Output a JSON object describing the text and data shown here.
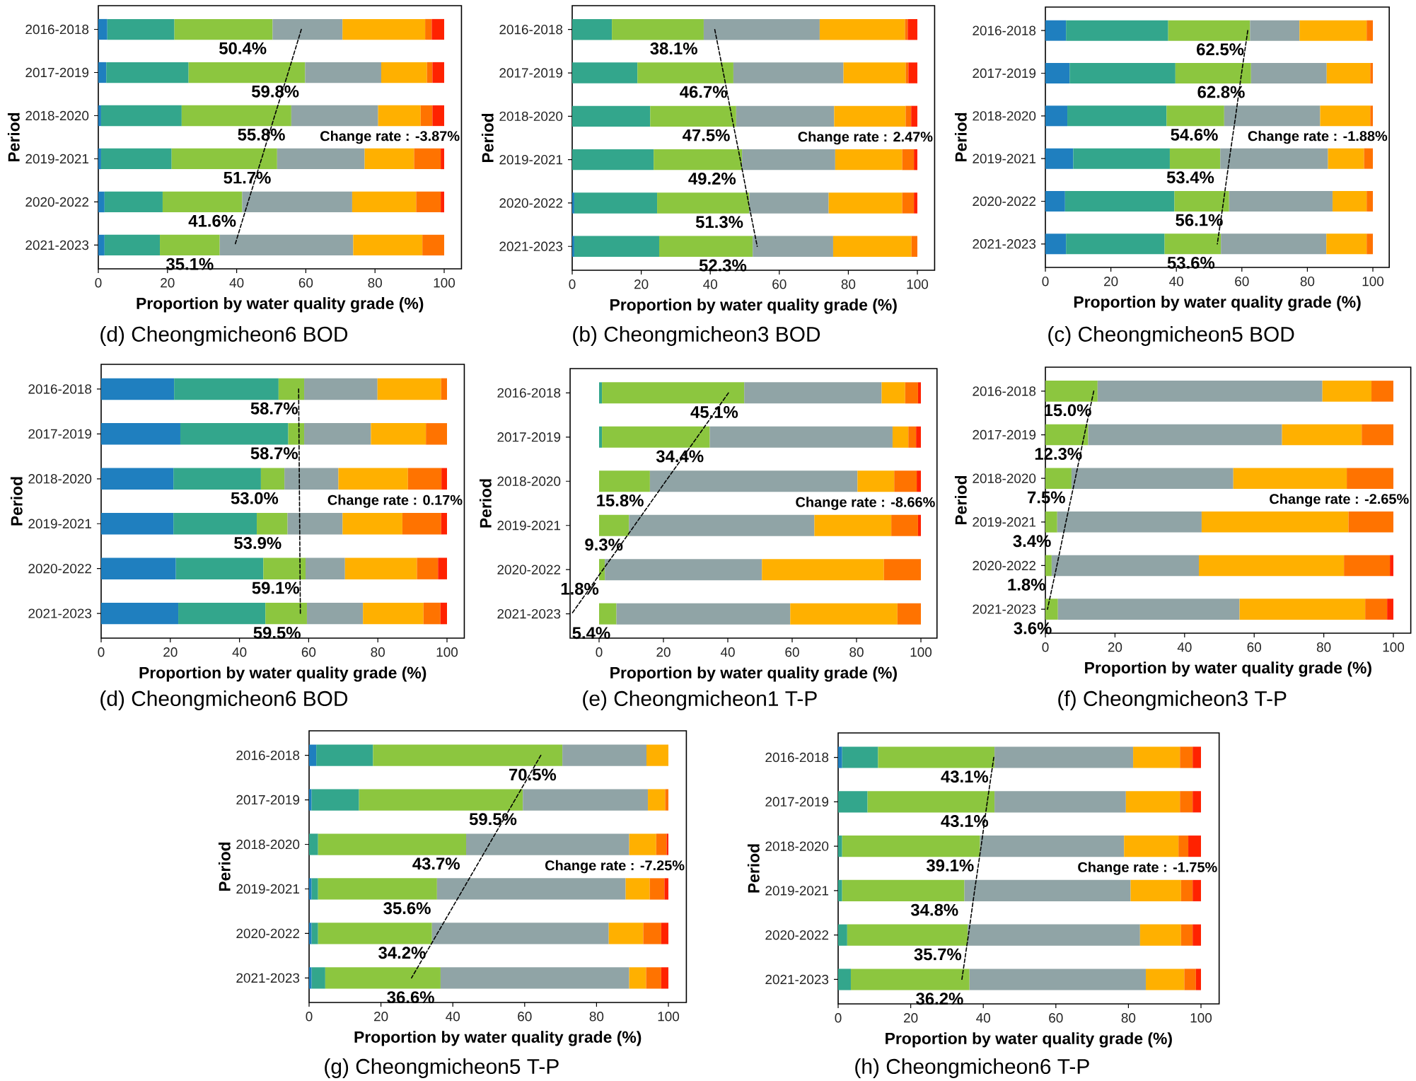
{
  "chart_data": [
    {
      "type": "bar",
      "orientation": "horizontal",
      "stacked": true,
      "title": "(d) Cheongmicheon6 BOD",
      "xlabel": "Proportion by water quality grade (%)",
      "ylabel": "Period",
      "categories": [
        "2016-2018",
        "2017-2019",
        "2018-2020",
        "2019-2021",
        "2020-2022",
        "2021-2023"
      ],
      "xlim": [
        0,
        105
      ],
      "xticks": [
        0,
        20,
        40,
        60,
        80,
        100
      ],
      "series": [
        {
          "color": "#1f7fbf",
          "values": [
            2.6,
            2.3,
            0.8,
            0.8,
            1.8,
            1.8
          ]
        },
        {
          "color": "#33a68c",
          "values": [
            19.4,
            23.8,
            23.3,
            20.4,
            16.8,
            16.0
          ]
        },
        {
          "color": "#8cc63f",
          "values": [
            28.4,
            33.7,
            31.7,
            30.5,
            23.0,
            17.3
          ]
        },
        {
          "color": "#90a4a6",
          "values": [
            20.2,
            22.0,
            25.1,
            25.3,
            31.8,
            38.6
          ]
        },
        {
          "color": "#ffb000",
          "values": [
            23.9,
            13.2,
            12.3,
            14.3,
            18.5,
            20.0
          ]
        },
        {
          "color": "#ff7300",
          "values": [
            1.9,
            1.6,
            3.4,
            7.7,
            7.1,
            6.3
          ]
        },
        {
          "color": "#ff2200",
          "values": [
            3.6,
            3.4,
            3.4,
            1.0,
            1.0,
            0
          ]
        },
        {
          "type": "line",
          "color": "#000000",
          "line_style": "dashed",
          "values": [
            58.7,
            54.9,
            51.0,
            47.2,
            43.3,
            39.5
          ]
        }
      ],
      "annotations": [
        {
          "text": "50.4%",
          "x": 50.4,
          "y": "2016-2018"
        },
        {
          "text": "59.8%",
          "x": 59.8,
          "y": "2017-2019"
        },
        {
          "text": "55.8%",
          "x": 55.8,
          "y": "2018-2020"
        },
        {
          "text": "51.7%",
          "x": 51.7,
          "y": "2019-2021"
        },
        {
          "text": "41.6%",
          "x": 41.6,
          "y": "2020-2022"
        },
        {
          "text": "35.1%",
          "x": 35.1,
          "y": "2021-2023"
        },
        "Change rate : -3.87%"
      ]
    },
    {
      "type": "bar",
      "orientation": "horizontal",
      "stacked": true,
      "title": "(b) Cheongmicheon3 BOD",
      "xlabel": "Proportion by water quality grade (%)",
      "ylabel": "Period",
      "categories": [
        "2016-2018",
        "2017-2019",
        "2018-2020",
        "2019-2021",
        "2020-2022",
        "2021-2023"
      ],
      "xlim": [
        0,
        105
      ],
      "xticks": [
        0,
        20,
        40,
        60,
        80,
        100
      ],
      "series": [
        {
          "color": "#1f7fbf",
          "values": [
            0,
            0,
            0,
            0,
            0.6,
            0.6
          ]
        },
        {
          "color": "#33a68c",
          "values": [
            11.5,
            18.9,
            22.6,
            23.6,
            24.0,
            24.6
          ]
        },
        {
          "color": "#8cc63f",
          "values": [
            26.6,
            27.8,
            24.9,
            25.6,
            26.7,
            27.1
          ]
        },
        {
          "color": "#90a4a6",
          "values": [
            33.6,
            31.9,
            28.4,
            27.0,
            23.0,
            23.3
          ]
        },
        {
          "color": "#ffb000",
          "values": [
            24.7,
            18.0,
            20.7,
            19.4,
            21.3,
            22.7
          ]
        },
        {
          "color": "#ff7300",
          "values": [
            0.8,
            0.8,
            1.6,
            3.4,
            3.4,
            1.7
          ]
        },
        {
          "color": "#ff2200",
          "values": [
            2.8,
            2.6,
            1.8,
            1.0,
            1.0,
            0
          ]
        },
        {
          "type": "line",
          "color": "#000000",
          "line_style": "dashed",
          "values": [
            41.3,
            43.8,
            46.2,
            48.7,
            51.1,
            53.6
          ]
        }
      ],
      "annotations": [
        {
          "text": "38.1%",
          "x": 38.1,
          "y": "2016-2018"
        },
        {
          "text": "46.7%",
          "x": 46.7,
          "y": "2017-2019"
        },
        {
          "text": "47.5%",
          "x": 47.5,
          "y": "2018-2020"
        },
        {
          "text": "49.2%",
          "x": 49.2,
          "y": "2019-2021"
        },
        {
          "text": "51.3%",
          "x": 51.3,
          "y": "2020-2022"
        },
        {
          "text": "52.3%",
          "x": 52.3,
          "y": "2021-2023"
        },
        "Change rate : 2.47%"
      ]
    },
    {
      "type": "bar",
      "orientation": "horizontal",
      "stacked": true,
      "title": "(c) Cheongmicheon5 BOD",
      "xlabel": "Proportion by water quality grade (%)",
      "ylabel": "Period",
      "categories": [
        "2016-2018",
        "2017-2019",
        "2018-2020",
        "2019-2021",
        "2020-2022",
        "2021-2023"
      ],
      "xlim": [
        0,
        105
      ],
      "xticks": [
        0,
        20,
        40,
        60,
        80,
        100
      ],
      "series": [
        {
          "color": "#1f7fbf",
          "values": [
            6.3,
            7.4,
            6.7,
            8.5,
            6.0,
            6.3
          ]
        },
        {
          "color": "#33a68c",
          "values": [
            31.2,
            32.3,
            30.3,
            29.5,
            33.4,
            30.1
          ]
        },
        {
          "color": "#8cc63f",
          "values": [
            25.0,
            23.1,
            17.6,
            15.4,
            16.7,
            17.2
          ]
        },
        {
          "color": "#90a4a6",
          "values": [
            15.1,
            23.1,
            29.3,
            32.9,
            31.6,
            32.2
          ]
        },
        {
          "color": "#ffb000",
          "values": [
            20.5,
            13.3,
            15.3,
            11.0,
            10.4,
            12.3
          ]
        },
        {
          "color": "#ff7300",
          "values": [
            1.9,
            0.8,
            0.8,
            2.7,
            1.9,
            1.9
          ]
        },
        {
          "type": "line",
          "color": "#000000",
          "line_style": "dashed",
          "values": [
            61.8,
            59.9,
            58.1,
            56.2,
            54.4,
            52.5
          ]
        }
      ],
      "annotations": [
        {
          "text": "62.5%",
          "x": 62.5,
          "y": "2016-2018"
        },
        {
          "text": "62.8%",
          "x": 62.8,
          "y": "2017-2019"
        },
        {
          "text": "54.6%",
          "x": 54.6,
          "y": "2018-2020"
        },
        {
          "text": "53.4%",
          "x": 53.4,
          "y": "2019-2021"
        },
        {
          "text": "56.1%",
          "x": 56.1,
          "y": "2020-2022"
        },
        {
          "text": "53.6%",
          "x": 53.6,
          "y": "2021-2023"
        },
        "Change rate : -1.88%"
      ]
    },
    {
      "type": "bar",
      "orientation": "horizontal",
      "stacked": true,
      "title": "(d) Cheongmicheon6 BOD",
      "xlabel": "Proportion by water quality grade (%)",
      "ylabel": "Period",
      "categories": [
        "2016-2018",
        "2017-2019",
        "2018-2020",
        "2019-2021",
        "2020-2022",
        "2021-2023"
      ],
      "xlim": [
        0,
        105
      ],
      "xticks": [
        0,
        20,
        40,
        60,
        80,
        100
      ],
      "series": [
        {
          "color": "#1f7fbf",
          "values": [
            21.1,
            22.9,
            20.9,
            20.9,
            21.6,
            22.3
          ]
        },
        {
          "color": "#33a68c",
          "values": [
            30.2,
            31.2,
            25.3,
            24.1,
            25.3,
            25.2
          ]
        },
        {
          "color": "#8cc63f",
          "values": [
            7.4,
            4.6,
            6.8,
            8.9,
            12.2,
            12.0
          ]
        },
        {
          "color": "#90a4a6",
          "values": [
            21.2,
            19.3,
            15.6,
            15.9,
            11.4,
            16.2
          ]
        },
        {
          "color": "#ffb000",
          "values": [
            18.4,
            15.9,
            20.1,
            17.3,
            20.8,
            17.5
          ]
        },
        {
          "color": "#ff7300",
          "values": [
            1.7,
            6.1,
            9.7,
            11.2,
            6.1,
            4.9
          ]
        },
        {
          "color": "#ff2200",
          "values": [
            0,
            0,
            1.6,
            1.7,
            2.6,
            1.9
          ]
        },
        {
          "type": "line",
          "color": "#000000",
          "line_style": "dashed",
          "values": [
            57.1,
            57.2,
            57.3,
            57.4,
            57.5,
            57.6
          ]
        }
      ],
      "annotations": [
        {
          "text": "58.7%",
          "x": 58.7,
          "y": "2016-2018"
        },
        {
          "text": "58.7%",
          "x": 58.7,
          "y": "2017-2019"
        },
        {
          "text": "53.0%",
          "x": 53.0,
          "y": "2018-2020"
        },
        {
          "text": "53.9%",
          "x": 53.9,
          "y": "2019-2021"
        },
        {
          "text": "59.1%",
          "x": 59.1,
          "y": "2020-2022"
        },
        {
          "text": "59.5%",
          "x": 59.5,
          "y": "2021-2023"
        },
        "Change rate : 0.17%"
      ]
    },
    {
      "type": "bar",
      "orientation": "horizontal",
      "stacked": true,
      "title": "(e) Cheongmicheon1 T-P",
      "xlabel": "Proportion by water quality grade (%)",
      "ylabel": "Period",
      "categories": [
        "2016-2018",
        "2017-2019",
        "2018-2020",
        "2019-2021",
        "2020-2022",
        "2021-2023"
      ],
      "xlim": [
        -9,
        105
      ],
      "xticks": [
        0,
        20,
        40,
        60,
        80,
        100
      ],
      "series": [
        {
          "color": "#33a68c",
          "values": [
            0.9,
            0.9,
            0,
            0,
            0,
            0
          ]
        },
        {
          "color": "#8cc63f",
          "values": [
            44.2,
            33.5,
            15.8,
            9.3,
            1.8,
            5.4
          ]
        },
        {
          "color": "#90a4a6",
          "values": [
            42.7,
            56.8,
            64.5,
            57.6,
            48.8,
            54.0
          ]
        },
        {
          "color": "#ffb000",
          "values": [
            7.3,
            4.9,
            11.4,
            23.9,
            37.9,
            33.3
          ]
        },
        {
          "color": "#ff7300",
          "values": [
            4.0,
            2.4,
            7.0,
            8.3,
            11.5,
            7.3
          ]
        },
        {
          "color": "#ff2200",
          "values": [
            0.9,
            1.5,
            1.3,
            0.9,
            0,
            0
          ]
        },
        {
          "type": "line",
          "color": "#000000",
          "line_style": "dashed",
          "values": [
            40.2,
            30.5,
            20.7,
            11.0,
            1.2,
            -8.5
          ]
        }
      ],
      "annotations": [
        {
          "text": "45.1%",
          "x": 45.1,
          "y": "2016-2018"
        },
        {
          "text": "34.4%",
          "x": 34.4,
          "y": "2017-2019"
        },
        {
          "text": "15.8%",
          "x": 15.8,
          "y": "2018-2020"
        },
        {
          "text": "9.3%",
          "x": 9.3,
          "y": "2019-2021"
        },
        {
          "text": "1.8%",
          "x": 1.8,
          "y": "2020-2022"
        },
        {
          "text": "5.4%",
          "x": 5.4,
          "y": "2021-2023"
        },
        "Change rate : -8.66%"
      ]
    },
    {
      "type": "bar",
      "orientation": "horizontal",
      "stacked": true,
      "title": "(f) Cheongmicheon3 T-P",
      "xlabel": "Proportion by water quality grade (%)",
      "ylabel": "Period",
      "categories": [
        "2016-2018",
        "2017-2019",
        "2018-2020",
        "2019-2021",
        "2020-2022",
        "2021-2023"
      ],
      "xlim": [
        0,
        105
      ],
      "xticks": [
        0,
        20,
        40,
        60,
        80,
        100
      ],
      "series": [
        {
          "color": "#8cc63f",
          "values": [
            15.0,
            12.3,
            7.5,
            3.4,
            1.8,
            3.6
          ]
        },
        {
          "color": "#90a4a6",
          "values": [
            64.6,
            55.7,
            46.5,
            41.5,
            42.3,
            52.2
          ]
        },
        {
          "color": "#ffb000",
          "values": [
            14.1,
            22.9,
            32.6,
            42.2,
            41.7,
            36.1
          ]
        },
        {
          "color": "#ff7300",
          "values": [
            6.3,
            9.1,
            13.4,
            12.9,
            13.2,
            6.3
          ]
        },
        {
          "color": "#ff2200",
          "values": [
            0,
            0,
            0,
            0,
            1.0,
            1.8
          ]
        },
        {
          "type": "line",
          "color": "#000000",
          "line_style": "dashed",
          "values": [
            13.9,
            11.2,
            8.6,
            5.9,
            3.3,
            0.6
          ]
        }
      ],
      "annotations": [
        {
          "text": "15.0%",
          "x": 15.0,
          "y": "2016-2018"
        },
        {
          "text": "12.3%",
          "x": 12.3,
          "y": "2017-2019"
        },
        {
          "text": "7.5%",
          "x": 7.5,
          "y": "2018-2020"
        },
        {
          "text": "3.4%",
          "x": 3.4,
          "y": "2019-2021"
        },
        {
          "text": "1.8%",
          "x": 1.8,
          "y": "2020-2022"
        },
        {
          "text": "3.6%",
          "x": 3.6,
          "y": "2021-2023"
        },
        "Change rate : -2.65%"
      ]
    },
    {
      "type": "bar",
      "orientation": "horizontal",
      "stacked": true,
      "title": "(g) Cheongmicheon5 T-P",
      "xlabel": "Proportion by water quality grade (%)",
      "ylabel": "Period",
      "categories": [
        "2016-2018",
        "2017-2019",
        "2018-2020",
        "2019-2021",
        "2020-2022",
        "2021-2023"
      ],
      "xlim": [
        0,
        105
      ],
      "xticks": [
        0,
        20,
        40,
        60,
        80,
        100
      ],
      "series": [
        {
          "color": "#1f7fbf",
          "values": [
            2.0,
            0.7,
            0,
            0.7,
            0.7,
            0.7
          ]
        },
        {
          "color": "#33a68c",
          "values": [
            15.8,
            13.2,
            2.5,
            1.8,
            1.8,
            3.8
          ]
        },
        {
          "color": "#8cc63f",
          "values": [
            52.7,
            45.6,
            41.2,
            33.1,
            31.7,
            32.1
          ]
        },
        {
          "color": "#90a4a6",
          "values": [
            23.4,
            34.8,
            45.4,
            52.5,
            49.2,
            52.5
          ]
        },
        {
          "color": "#ffb000",
          "values": [
            6.1,
            4.8,
            7.5,
            6.7,
            9.6,
            4.7
          ]
        },
        {
          "color": "#ff7300",
          "values": [
            0,
            0.9,
            2.9,
            4.1,
            5.0,
            4.2
          ]
        },
        {
          "color": "#ff2200",
          "values": [
            0,
            0,
            0.5,
            1.1,
            2.0,
            2.0
          ]
        },
        {
          "type": "line",
          "color": "#000000",
          "line_style": "dashed",
          "values": [
            64.5,
            57.3,
            50.1,
            42.9,
            35.7,
            28.5
          ]
        }
      ],
      "annotations": [
        {
          "text": "70.5%",
          "x": 70.5,
          "y": "2016-2018"
        },
        {
          "text": "59.5%",
          "x": 59.5,
          "y": "2017-2019"
        },
        {
          "text": "43.7%",
          "x": 43.7,
          "y": "2018-2020"
        },
        {
          "text": "35.6%",
          "x": 35.6,
          "y": "2019-2021"
        },
        {
          "text": "34.2%",
          "x": 34.2,
          "y": "2020-2022"
        },
        {
          "text": "36.6%",
          "x": 36.6,
          "y": "2021-2023"
        },
        "Change rate : -7.25%"
      ]
    },
    {
      "type": "bar",
      "orientation": "horizontal",
      "stacked": true,
      "title": "(h) Cheongmicheon6 T-P",
      "xlabel": "Proportion by water quality grade (%)",
      "ylabel": "Period",
      "categories": [
        "2016-2018",
        "2017-2019",
        "2018-2020",
        "2019-2021",
        "2020-2022",
        "2021-2023"
      ],
      "xlim": [
        0,
        105
      ],
      "xticks": [
        0,
        20,
        40,
        60,
        80,
        100
      ],
      "series": [
        {
          "color": "#1f7fbf",
          "values": [
            1.1,
            0,
            0,
            0,
            0,
            0
          ]
        },
        {
          "color": "#33a68c",
          "values": [
            9.9,
            8.1,
            1.1,
            1.1,
            2.5,
            3.5
          ]
        },
        {
          "color": "#8cc63f",
          "values": [
            32.1,
            35.0,
            38.0,
            33.7,
            33.2,
            32.7
          ]
        },
        {
          "color": "#90a4a6",
          "values": [
            38.2,
            36.2,
            39.7,
            45.8,
            47.5,
            48.6
          ]
        },
        {
          "color": "#ffb000",
          "values": [
            12.9,
            14.9,
            15.0,
            13.9,
            11.3,
            10.6
          ]
        },
        {
          "color": "#ff7300",
          "values": [
            3.5,
            3.5,
            2.7,
            3.2,
            3.2,
            3.2
          ]
        },
        {
          "color": "#ff2200",
          "values": [
            2.3,
            2.3,
            3.5,
            2.3,
            2.3,
            1.4
          ]
        },
        {
          "type": "line",
          "color": "#000000",
          "line_style": "dashed",
          "values": [
            42.9,
            41.1,
            39.4,
            37.6,
            35.9,
            34.1
          ]
        }
      ],
      "annotations": [
        {
          "text": "43.1%",
          "x": 43.1,
          "y": "2016-2018"
        },
        {
          "text": "43.1%",
          "x": 43.1,
          "y": "2017-2019"
        },
        {
          "text": "39.1%",
          "x": 39.1,
          "y": "2018-2020"
        },
        {
          "text": "34.8%",
          "x": 34.8,
          "y": "2019-2021"
        },
        {
          "text": "35.7%",
          "x": 35.7,
          "y": "2020-2022"
        },
        {
          "text": "36.2%",
          "x": 36.2,
          "y": "2021-2023"
        },
        "Change rate : -1.75%"
      ]
    }
  ]
}
